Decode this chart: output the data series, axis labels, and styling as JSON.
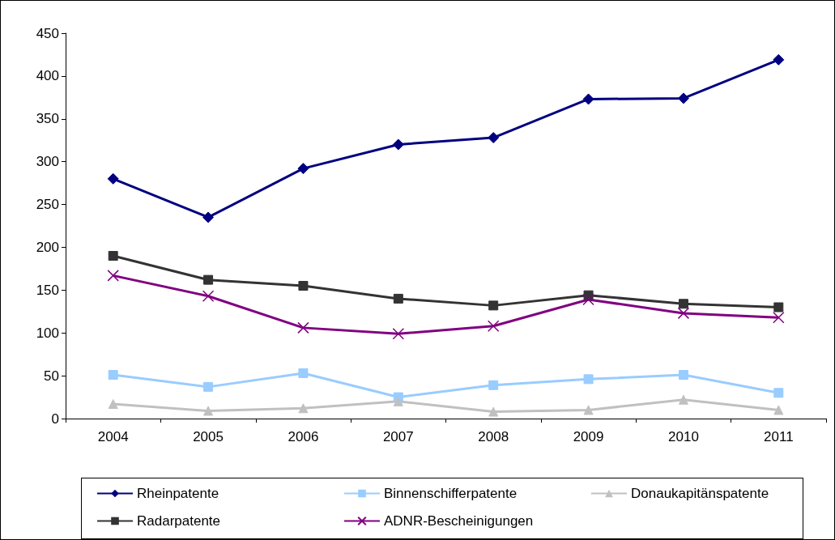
{
  "chart_data": {
    "type": "line",
    "categories": [
      "2004",
      "2005",
      "2006",
      "2007",
      "2008",
      "2009",
      "2010",
      "2011"
    ],
    "ylim": [
      0,
      450
    ],
    "yticks": [
      0,
      50,
      100,
      150,
      200,
      250,
      300,
      350,
      400,
      450
    ],
    "grid": false,
    "legend": "bottom",
    "line_style": "solid",
    "series": [
      {
        "name": "Rheinpatente",
        "color": "#000080",
        "marker": "diamond",
        "values": [
          280,
          235,
          292,
          320,
          328,
          373,
          374,
          419
        ]
      },
      {
        "name": "Binnenschifferpatente",
        "color": "#99ccff",
        "marker": "square",
        "values": [
          51,
          37,
          53,
          25,
          39,
          46,
          51,
          30
        ]
      },
      {
        "name": "Donaukapitänspatente",
        "color": "#c0c0c0",
        "marker": "triangle",
        "values": [
          17,
          9,
          12,
          20,
          8,
          10,
          22,
          10
        ]
      },
      {
        "name": "Radarpatente",
        "color": "#333333",
        "marker": "square",
        "values": [
          190,
          162,
          155,
          140,
          132,
          144,
          134,
          130
        ]
      },
      {
        "name": "ADNR-Bescheinigungen",
        "color": "#800080",
        "marker": "cross",
        "values": [
          167,
          143,
          106,
          99,
          108,
          139,
          123,
          118
        ]
      }
    ]
  }
}
